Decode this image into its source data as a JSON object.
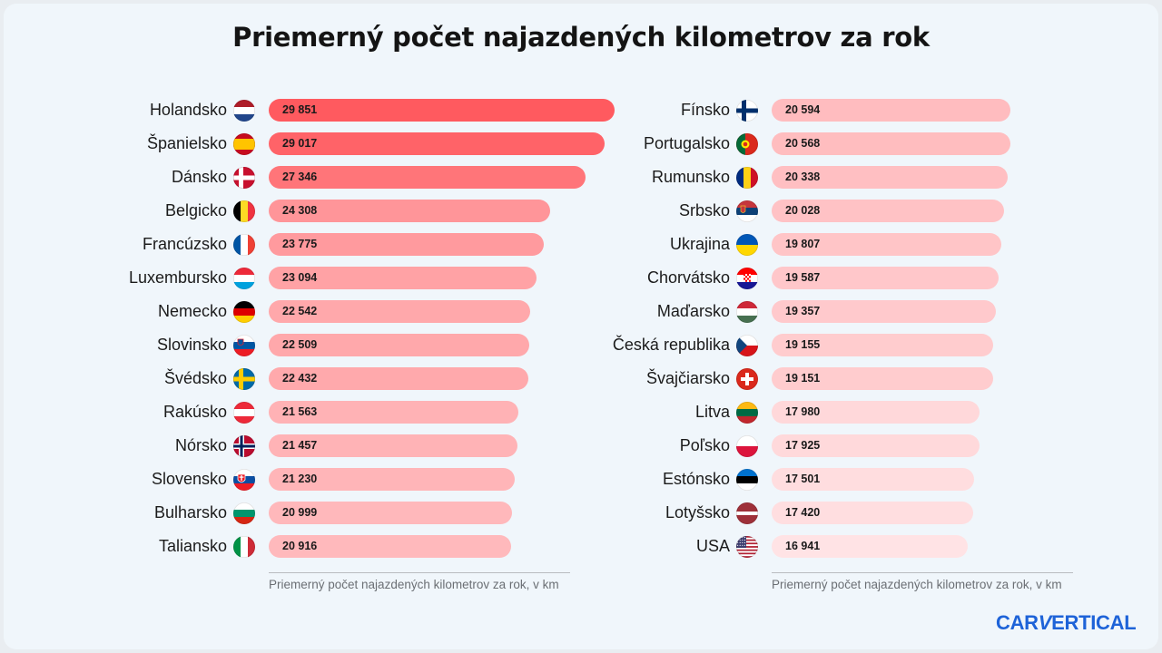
{
  "title": "Priemerný počet najazdených kilometrov za rok",
  "axis_label": "Priemerný počet najazdených kilometrov za rok, v km",
  "logo": "CARVERTICAL",
  "colors": {
    "bar_high": "#ff5a5f",
    "bar_low": "#ffe3e5",
    "logo": "#1e63d8"
  },
  "chart_data": [
    {
      "type": "bar",
      "orientation": "horizontal",
      "title": "Priemerný počet najazdených kilometrov za rok",
      "xlabel": "Priemerný počet najazdených kilometrov za rok, v km",
      "categories": [
        "Holandsko",
        "Španielsko",
        "Dánsko",
        "Belgicko",
        "Francúzsko",
        "Luxembursko",
        "Nemecko",
        "Slovinsko",
        "Švédsko",
        "Rakúsko",
        "Nórsko",
        "Slovensko",
        "Bulharsko",
        "Taliansko"
      ],
      "values": [
        29851,
        29017,
        27346,
        24308,
        23775,
        23094,
        22542,
        22509,
        22432,
        21563,
        21457,
        21230,
        20999,
        20916
      ],
      "labels": [
        "29 851",
        "29 017",
        "27 346",
        "24 308",
        "23 775",
        "23 094",
        "22 542",
        "22 509",
        "22 432",
        "21 563",
        "21 457",
        "21 230",
        "20 999",
        "20 916"
      ],
      "flags": [
        "nl",
        "es",
        "dk",
        "be",
        "fr",
        "lu",
        "de",
        "si",
        "se",
        "at",
        "no",
        "sk",
        "bg",
        "it"
      ]
    },
    {
      "type": "bar",
      "orientation": "horizontal",
      "xlabel": "Priemerný počet najazdených kilometrov za rok, v km",
      "categories": [
        "Fínsko",
        "Portugalsko",
        "Rumunsko",
        "Srbsko",
        "Ukrajina",
        "Chorvátsko",
        "Maďarsko",
        "Česká republika",
        "Švajčiarsko",
        "Litva",
        "Poľsko",
        "Estónsko",
        "Lotyšsko",
        "USA"
      ],
      "values": [
        20594,
        20568,
        20338,
        20028,
        19807,
        19587,
        19357,
        19155,
        19151,
        17980,
        17925,
        17501,
        17420,
        16941
      ],
      "labels": [
        "20 594",
        "20 568",
        "20 338",
        "20 028",
        "19 807",
        "19 587",
        "19 357",
        "19 155",
        "19 151",
        "17 980",
        "17 925",
        "17 501",
        "17 420",
        "16 941"
      ],
      "flags": [
        "fi",
        "pt",
        "ro",
        "rs",
        "ua",
        "hr",
        "hu",
        "cz",
        "ch",
        "lt",
        "pl",
        "ee",
        "lv",
        "us"
      ]
    }
  ]
}
